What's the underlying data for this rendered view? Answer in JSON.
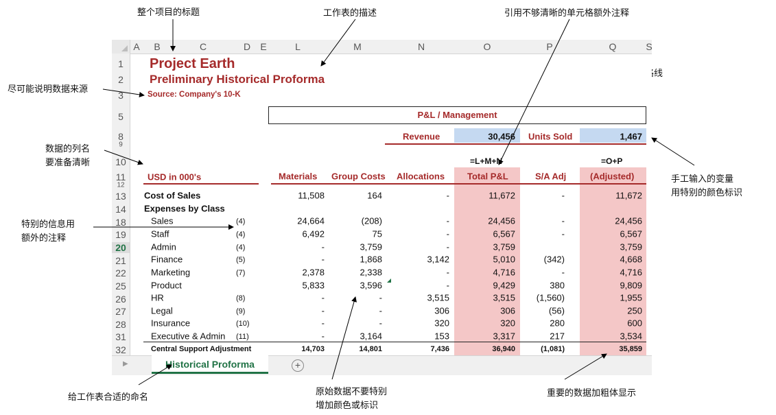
{
  "annotations": {
    "title_note": "整个项目的标题",
    "desc_note": "工作表的描述",
    "extra_note": "引用不够清晰的单元格额外注释",
    "source_note": "尽可能说明数据来源",
    "hide_grid_note": "隐藏网格线",
    "colname_note_1": "数据的列名",
    "colname_note_2": "要准备清晰",
    "input_note_1": "手工输入的变量",
    "input_note_2": "用特别的颜色标识",
    "special_note_1": "特别的信息用",
    "special_note_2": "额外的注释",
    "tabname_note": "给工作表合适的命名",
    "raw_note_1": "原始数据不要特别",
    "raw_note_2": "增加颜色或标识",
    "bold_note": "重要的数据加粗体显示"
  },
  "columns": [
    "A",
    "B",
    "C",
    "D",
    "E",
    "L",
    "M",
    "N",
    "O",
    "P",
    "Q",
    "S"
  ],
  "rows": [
    "1",
    "2",
    "3",
    "5",
    "8",
    "9",
    "10",
    "11",
    "12",
    "13",
    "14",
    "18",
    "19",
    "20",
    "21",
    "22",
    "25",
    "26",
    "27",
    "28",
    "31",
    "32"
  ],
  "sheet": {
    "title": "Project Earth",
    "subtitle": "Preliminary  Historical Proforma",
    "source": "Source: Company's 10-K",
    "section": "P&L / Management",
    "revenue_label": "Revenue",
    "revenue_value": "30,456",
    "units_label": "Units Sold",
    "units_value": "1,467",
    "formula_o": "=L+M+N",
    "formula_q": "=O+P",
    "usd_label": "USD in 000's",
    "headers": [
      "Materials",
      "Group Costs",
      "Allocations",
      "Total P&L",
      "S/A Adj",
      "(Adjusted)"
    ],
    "cost_of_sales": {
      "label": "Cost of Sales",
      "values": [
        "11,508",
        "164",
        "-",
        "11,672",
        "-",
        "11,672"
      ]
    },
    "expenses_label": "Expenses by Class",
    "lines": [
      {
        "label": "Sales",
        "note": "(4)",
        "values": [
          "24,664",
          "(208)",
          "-",
          "24,456",
          "-",
          "24,456"
        ]
      },
      {
        "label": "Staff",
        "note": "(4)",
        "values": [
          "6,492",
          "75",
          "-",
          "6,567",
          "-",
          "6,567"
        ]
      },
      {
        "label": "Admin",
        "note": "(4)",
        "values": [
          "-",
          "3,759",
          "-",
          "3,759",
          "",
          "3,759"
        ]
      },
      {
        "label": "Finance",
        "note": "(5)",
        "values": [
          "-",
          "1,868",
          "3,142",
          "5,010",
          "(342)",
          "4,668"
        ]
      },
      {
        "label": "Marketing",
        "note": "(7)",
        "values": [
          "2,378",
          "2,338",
          "-",
          "4,716",
          "-",
          "4,716"
        ]
      },
      {
        "label": "Product",
        "note": "",
        "values": [
          "5,833",
          "3,596",
          "-",
          "9,429",
          "380",
          "9,809"
        ]
      },
      {
        "label": "HR",
        "note": "(8)",
        "values": [
          "-",
          "-",
          "3,515",
          "3,515",
          "(1,560)",
          "1,955"
        ]
      },
      {
        "label": "Legal",
        "note": "(9)",
        "values": [
          "-",
          "-",
          "306",
          "306",
          "(56)",
          "250"
        ]
      },
      {
        "label": "Insurance",
        "note": "(10)",
        "values": [
          "-",
          "-",
          "320",
          "320",
          "280",
          "600"
        ]
      },
      {
        "label": "Executive & Admin",
        "note": "(11)",
        "values": [
          "-",
          "3,164",
          "153",
          "3,317",
          "217",
          "3,534"
        ]
      }
    ],
    "total": {
      "label": "Central Support Adjustment",
      "values": [
        "14,703",
        "14,801",
        "7,436",
        "36,940",
        "(1,081)",
        "35,859"
      ]
    }
  },
  "tab_name": "Historical Proforma",
  "add_sheet": "⊕",
  "colors": {
    "red": "#a52a2a",
    "pink": "#f4c7c7",
    "blue": "#c5d9f1",
    "excel_green": "#217346"
  }
}
